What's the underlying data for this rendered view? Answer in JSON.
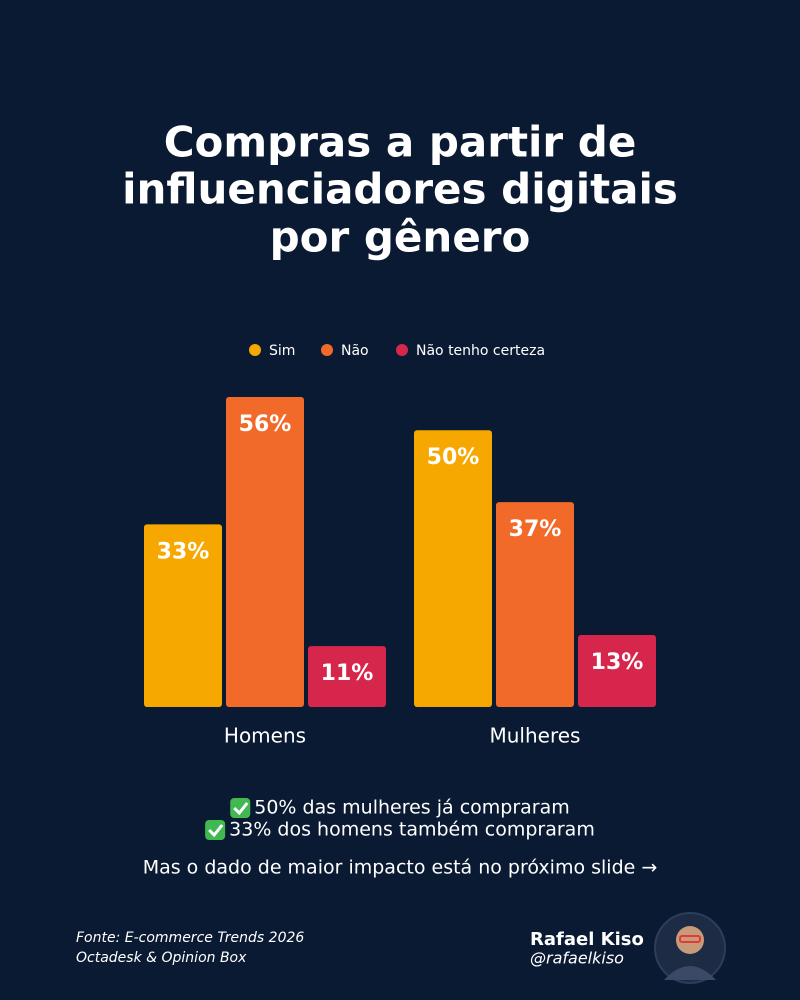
{
  "header": {
    "title_lines": [
      "Compras a partir de",
      "influenciadores digitais",
      "por gênero"
    ]
  },
  "chart_data": {
    "type": "bar",
    "categories": [
      "Homens",
      "Mulheres"
    ],
    "series": [
      {
        "name": "Sim",
        "color": "#f6a800",
        "values": [
          33,
          50
        ],
        "value_labels": [
          "33%",
          "50%"
        ]
      },
      {
        "name": "Não",
        "color": "#f26a2a",
        "values": [
          56,
          37
        ],
        "value_labels": [
          "56%",
          "37%"
        ]
      },
      {
        "name": "Não tenho certeza",
        "color": "#d7264b",
        "values": [
          11,
          13
        ],
        "value_labels": [
          "11%",
          "13%"
        ]
      }
    ],
    "legend": "top"
  },
  "highlights": [
    "50% das mulheres já compraram",
    "33% dos homens também compraram"
  ],
  "teaser": "Mas o dado de maior impacto está no próximo slide →",
  "source": [
    "Fonte: E-commerce Trends 2026",
    "Octadesk & Opinion Box"
  ],
  "author": {
    "name": "Rafael Kiso",
    "handle": "@rafaelkiso"
  }
}
